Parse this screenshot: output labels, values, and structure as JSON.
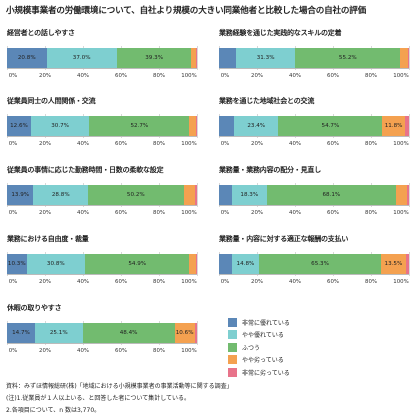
{
  "title": "小規模事業者の労働環境について、自社より規模の大きい同業他者と比較した場合の自社の評価",
  "chart_data": {
    "type": "bar",
    "stacked": true,
    "orientation": "horizontal",
    "xlim": [
      0,
      100
    ],
    "ticks": [
      "0%",
      "20%",
      "40%",
      "60%",
      "80%",
      "100%"
    ],
    "categories": [
      "非常に優れている",
      "やや優れている",
      "ふつう",
      "やや劣っている",
      "非常に劣っている"
    ],
    "colors": [
      "#5b87b7",
      "#7ecfd0",
      "#72bb6f",
      "#f4a150",
      "#e8738a"
    ],
    "panels": [
      {
        "title": "経営者との話しやすさ",
        "values": [
          20.8,
          37.0,
          39.3,
          2.3,
          0.6
        ]
      },
      {
        "title": "業務経験を通じた実践的なスキルの定着",
        "values": [
          8.9,
          31.3,
          55.2,
          3.9,
          0.7
        ]
      },
      {
        "title": "従業員同士の人間関係・交流",
        "values": [
          12.6,
          30.7,
          52.7,
          3.3,
          0.7
        ]
      },
      {
        "title": "業務を通じた地域社会との交流",
        "values": [
          7.9,
          23.4,
          54.7,
          11.8,
          2.2
        ]
      },
      {
        "title": "従業員の事情に応じた勤務時間・日数の柔軟な設定",
        "values": [
          13.9,
          28.8,
          50.2,
          6.0,
          1.1
        ]
      },
      {
        "title": "業務量・業務内容の配分・見直し",
        "values": [
          6.8,
          18.3,
          68.1,
          5.6,
          1.2
        ]
      },
      {
        "title": "業務における自由度・裁量",
        "values": [
          10.3,
          30.8,
          54.9,
          3.3,
          0.7
        ]
      },
      {
        "title": "業務量・内容に対する適正な報酬の支払い",
        "values": [
          6.8,
          14.8,
          65.3,
          13.5,
          1.6
        ]
      },
      {
        "title": "休暇の取りやすさ",
        "values": [
          14.7,
          25.1,
          48.4,
          10.6,
          1.2
        ]
      }
    ]
  },
  "legend": [
    "非常に優れている",
    "やや優れている",
    "ふつう",
    "やや劣っている",
    "非常に劣っている"
  ],
  "footnotes": [
    "資料：みずほ情報総研(株)「地域における小規模事業者の事業活動等に関する調査」",
    "(注)1.従業員が１人以上いる、と回答した者について集計している。",
    "2.各項目について、n 数は3,770。"
  ]
}
